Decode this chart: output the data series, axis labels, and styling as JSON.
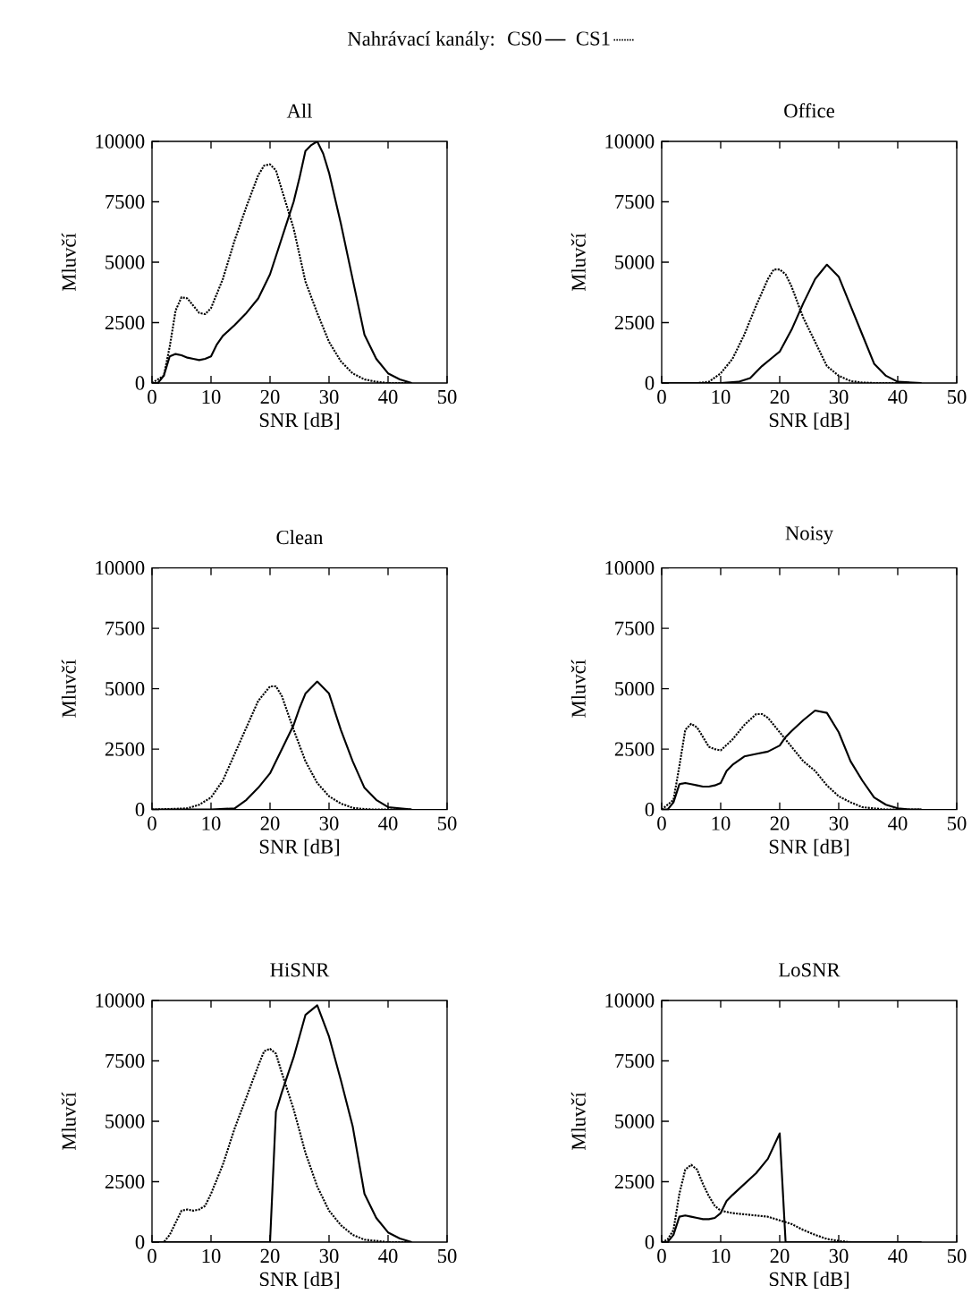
{
  "chart_data": [
    {
      "type": "line",
      "title": "All",
      "xlabel": "SNR [dB]",
      "ylabel": "Mluvčí",
      "xlim": [
        0,
        50
      ],
      "ylim": [
        0,
        10000
      ],
      "xticks": [
        0,
        10,
        20,
        30,
        40,
        50
      ],
      "yticks": [
        0,
        2500,
        5000,
        7500,
        10000
      ],
      "legend": "top",
      "legend_title": "Nahrávací kanály:",
      "series": [
        {
          "name": "CS0",
          "color": "#000000",
          "line_style": "solid",
          "x": [
            0,
            1,
            2,
            3,
            4,
            5,
            6,
            7,
            8,
            9,
            10,
            11,
            12,
            14,
            16,
            18,
            20,
            22,
            24,
            25,
            26,
            27,
            28,
            29,
            30,
            32,
            34,
            36,
            38,
            40,
            42,
            44
          ],
          "values": [
            0,
            0,
            300,
            1100,
            1200,
            1150,
            1050,
            1000,
            950,
            1000,
            1100,
            1600,
            1950,
            2400,
            2900,
            3500,
            4500,
            6000,
            7500,
            8500,
            9600,
            9850,
            10000,
            9500,
            8700,
            6600,
            4300,
            2000,
            1000,
            400,
            150,
            0
          ]
        },
        {
          "name": "CS1",
          "color": "#000000",
          "line_style": "dotted",
          "x": [
            0,
            2,
            3,
            4,
            5,
            6,
            7,
            8,
            9,
            10,
            12,
            14,
            16,
            18,
            19,
            20,
            21,
            22,
            24,
            26,
            28,
            30,
            32,
            34,
            36,
            38,
            40,
            44
          ],
          "values": [
            0,
            300,
            1500,
            3000,
            3550,
            3500,
            3200,
            2900,
            2850,
            3100,
            4300,
            5900,
            7300,
            8600,
            9000,
            9050,
            8800,
            8000,
            6400,
            4200,
            2900,
            1700,
            900,
            400,
            150,
            50,
            0,
            0
          ]
        }
      ]
    },
    {
      "type": "line",
      "title": "Office",
      "xlabel": "SNR [dB]",
      "ylabel": "Mluvčí",
      "xlim": [
        0,
        50
      ],
      "ylim": [
        0,
        10000
      ],
      "xticks": [
        0,
        10,
        20,
        30,
        40,
        50
      ],
      "yticks": [
        0,
        2500,
        5000,
        7500,
        10000
      ],
      "series": [
        {
          "color": "#000000",
          "line_style": "solid",
          "x": [
            0,
            10,
            13,
            15,
            17,
            19,
            20,
            22,
            24,
            26,
            27,
            28,
            30,
            32,
            34,
            36,
            38,
            40,
            44
          ],
          "values": [
            0,
            0,
            50,
            200,
            700,
            1100,
            1300,
            2200,
            3300,
            4300,
            4600,
            4900,
            4400,
            3200,
            2000,
            800,
            300,
            50,
            0
          ]
        },
        {
          "color": "#000000",
          "line_style": "dotted",
          "x": [
            0,
            6,
            8,
            10,
            12,
            14,
            16,
            18,
            19,
            20,
            21,
            22,
            24,
            26,
            28,
            30,
            32,
            34,
            36,
            44
          ],
          "values": [
            0,
            0,
            50,
            400,
            1000,
            2000,
            3200,
            4300,
            4700,
            4700,
            4500,
            4000,
            2700,
            1700,
            700,
            300,
            80,
            20,
            0,
            0
          ]
        }
      ]
    },
    {
      "type": "line",
      "title": "Clean",
      "xlabel": "SNR [dB]",
      "ylabel": "Mluvčí",
      "xlim": [
        0,
        50
      ],
      "ylim": [
        0,
        10000
      ],
      "xticks": [
        0,
        10,
        20,
        30,
        40,
        50
      ],
      "yticks": [
        0,
        2500,
        5000,
        7500,
        10000
      ],
      "series": [
        {
          "color": "#000000",
          "line_style": "solid",
          "x": [
            0,
            10,
            14,
            16,
            18,
            20,
            22,
            24,
            25,
            26,
            28,
            30,
            32,
            34,
            36,
            38,
            40,
            44
          ],
          "values": [
            0,
            0,
            50,
            400,
            900,
            1500,
            2500,
            3500,
            4200,
            4800,
            5300,
            4800,
            3300,
            2000,
            900,
            400,
            100,
            0
          ]
        },
        {
          "color": "#000000",
          "line_style": "dotted",
          "x": [
            0,
            6,
            8,
            10,
            12,
            14,
            16,
            18,
            20,
            21,
            22,
            24,
            26,
            28,
            30,
            32,
            34,
            36,
            38,
            44
          ],
          "values": [
            0,
            50,
            200,
            500,
            1200,
            2300,
            3400,
            4500,
            5100,
            5100,
            4700,
            3300,
            2000,
            1100,
            550,
            250,
            70,
            20,
            0,
            0
          ]
        }
      ]
    },
    {
      "type": "line",
      "title": "Noisy",
      "xlabel": "SNR [dB]",
      "ylabel": "Mluvčí",
      "xlim": [
        0,
        50
      ],
      "ylim": [
        0,
        10000
      ],
      "xticks": [
        0,
        10,
        20,
        30,
        40,
        50
      ],
      "yticks": [
        0,
        2500,
        5000,
        7500,
        10000
      ],
      "series": [
        {
          "color": "#000000",
          "line_style": "solid",
          "x": [
            0,
            1,
            2,
            3,
            4,
            5,
            6,
            7,
            8,
            9,
            10,
            11,
            12,
            14,
            16,
            18,
            20,
            21,
            22,
            24,
            26,
            28,
            30,
            32,
            34,
            36,
            38,
            40,
            42,
            44
          ],
          "values": [
            0,
            0,
            300,
            1050,
            1100,
            1050,
            1000,
            950,
            950,
            1000,
            1100,
            1600,
            1850,
            2200,
            2300,
            2400,
            2650,
            3000,
            3250,
            3700,
            4100,
            4000,
            3200,
            2000,
            1200,
            500,
            200,
            50,
            0,
            0
          ]
        },
        {
          "color": "#000000",
          "line_style": "dotted",
          "x": [
            0,
            2,
            3,
            4,
            5,
            6,
            7,
            8,
            9,
            10,
            12,
            14,
            16,
            17,
            18,
            20,
            22,
            24,
            26,
            28,
            30,
            32,
            34,
            36,
            38,
            44
          ],
          "values": [
            0,
            400,
            1800,
            3300,
            3550,
            3400,
            3000,
            2600,
            2500,
            2450,
            2900,
            3500,
            3950,
            3950,
            3800,
            3200,
            2600,
            2000,
            1600,
            1000,
            550,
            300,
            100,
            50,
            0,
            0
          ]
        }
      ]
    },
    {
      "type": "line",
      "title": "HiSNR",
      "xlabel": "SNR [dB]",
      "ylabel": "Mluvčí",
      "xlim": [
        0,
        50
      ],
      "ylim": [
        0,
        10000
      ],
      "xticks": [
        0,
        10,
        20,
        30,
        40,
        50
      ],
      "yticks": [
        0,
        2500,
        5000,
        7500,
        10000
      ],
      "series": [
        {
          "color": "#000000",
          "line_style": "solid",
          "x": [
            0,
            20,
            21,
            22,
            24,
            26,
            28,
            30,
            32,
            34,
            36,
            38,
            40,
            42,
            44
          ],
          "values": [
            0,
            0,
            5400,
            6200,
            7650,
            9400,
            9800,
            8500,
            6700,
            4800,
            2000,
            1000,
            400,
            150,
            0
          ]
        },
        {
          "color": "#000000",
          "line_style": "dotted",
          "x": [
            0,
            2,
            3,
            4,
            5,
            6,
            7,
            8,
            9,
            10,
            12,
            14,
            16,
            18,
            19,
            20,
            21,
            22,
            24,
            26,
            28,
            30,
            32,
            34,
            36,
            38,
            40,
            44
          ],
          "values": [
            0,
            0,
            300,
            800,
            1300,
            1350,
            1300,
            1350,
            1500,
            2000,
            3200,
            4700,
            6000,
            7300,
            7900,
            8000,
            7800,
            7000,
            5500,
            3700,
            2300,
            1300,
            700,
            300,
            100,
            50,
            0,
            0
          ]
        }
      ]
    },
    {
      "type": "line",
      "title": "LoSNR",
      "xlabel": "SNR [dB]",
      "ylabel": "Mluvčí",
      "xlim": [
        0,
        50
      ],
      "ylim": [
        0,
        10000
      ],
      "xticks": [
        0,
        10,
        20,
        30,
        40,
        50
      ],
      "yticks": [
        0,
        2500,
        5000,
        7500,
        10000
      ],
      "series": [
        {
          "color": "#000000",
          "line_style": "solid",
          "x": [
            0,
            1,
            2,
            3,
            4,
            5,
            6,
            7,
            8,
            9,
            10,
            11,
            12,
            14,
            16,
            18,
            20,
            21,
            44
          ],
          "values": [
            0,
            0,
            300,
            1050,
            1100,
            1050,
            1000,
            950,
            950,
            1000,
            1200,
            1700,
            1950,
            2400,
            2850,
            3450,
            4500,
            0,
            0
          ]
        },
        {
          "color": "#000000",
          "line_style": "dotted",
          "x": [
            0,
            1,
            2,
            3,
            4,
            5,
            6,
            7,
            8,
            9,
            10,
            12,
            14,
            16,
            18,
            20,
            22,
            24,
            26,
            28,
            30,
            32,
            44
          ],
          "values": [
            0,
            100,
            500,
            2000,
            3000,
            3200,
            3000,
            2400,
            1900,
            1500,
            1300,
            1200,
            1150,
            1100,
            1050,
            900,
            750,
            500,
            300,
            130,
            50,
            0,
            0
          ]
        }
      ]
    }
  ]
}
